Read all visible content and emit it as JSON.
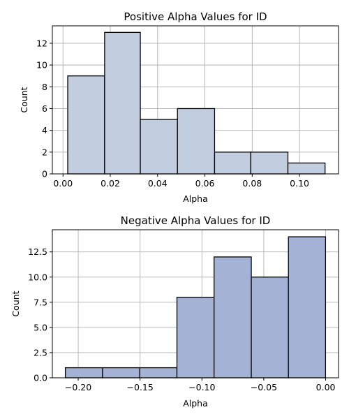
{
  "chart_data": [
    {
      "type": "bar",
      "title": "Positive Alpha Values for ID",
      "xlabel": "Alpha",
      "ylabel": "Count",
      "bin_edges": [
        0.002,
        0.0176,
        0.0327,
        0.0484,
        0.0641,
        0.0794,
        0.0951,
        0.1108
      ],
      "values": [
        9,
        13,
        5,
        6,
        2,
        2,
        1
      ],
      "xlim": [
        -0.0045,
        0.1165
      ],
      "ylim": [
        0,
        13.6
      ],
      "x_ticks": [
        0.0,
        0.02,
        0.04,
        0.06,
        0.08,
        0.1
      ],
      "x_tick_labels": [
        "0.00",
        "0.02",
        "0.04",
        "0.06",
        "0.08",
        "0.10"
      ],
      "y_ticks": [
        0,
        2,
        4,
        6,
        8,
        10,
        12
      ],
      "y_tick_labels": [
        "0",
        "2",
        "4",
        "6",
        "8",
        "10",
        "12"
      ],
      "grid": true,
      "color": "#c3cde0"
    },
    {
      "type": "bar",
      "title": "Negative Alpha Values for ID",
      "xlabel": "Alpha",
      "ylabel": "Count",
      "bin_edges": [
        -0.2104,
        -0.1803,
        -0.1503,
        -0.1202,
        -0.0902,
        -0.0601,
        -0.0301,
        -0.0001
      ],
      "values": [
        1,
        1,
        1,
        8,
        12,
        10,
        14
      ],
      "xlim": [
        -0.2209,
        0.0104
      ],
      "ylim": [
        0,
        14.7
      ],
      "x_ticks": [
        -0.2,
        -0.15,
        -0.1,
        -0.05,
        0.0
      ],
      "x_tick_labels": [
        "−0.20",
        "−0.15",
        "−0.10",
        "−0.05",
        "0.00"
      ],
      "y_ticks": [
        0.0,
        2.5,
        5.0,
        7.5,
        10.0,
        12.5
      ],
      "y_tick_labels": [
        "0.0",
        "2.5",
        "5.0",
        "7.5",
        "10.0",
        "12.5"
      ],
      "grid": true,
      "color": "#a4b2d6"
    }
  ]
}
